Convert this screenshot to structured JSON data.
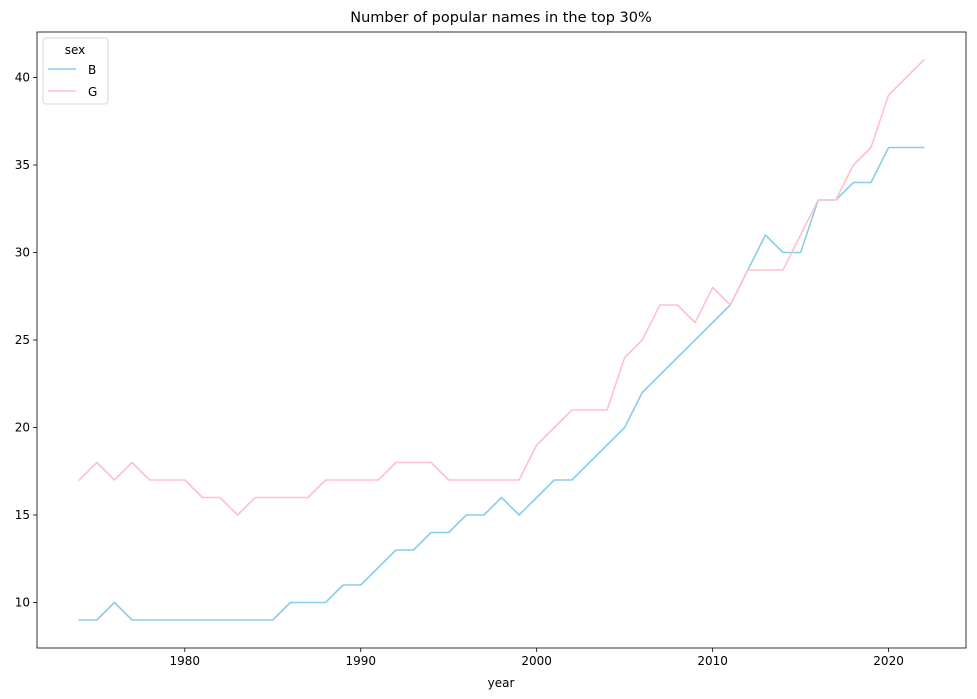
{
  "chart_data": {
    "type": "line",
    "title": "Number of popular names in the top 30%",
    "xlabel": "year",
    "ylabel": "",
    "xlim": [
      1971.6,
      2024.4
    ],
    "ylim": [
      7.4,
      42.6
    ],
    "xticks": [
      1980,
      1990,
      2000,
      2010,
      2020
    ],
    "yticks": [
      10,
      15,
      20,
      25,
      30,
      35,
      40
    ],
    "grid": false,
    "legend": {
      "title": "sex",
      "placement": "top-left"
    },
    "x": [
      1974,
      1975,
      1976,
      1977,
      1978,
      1979,
      1980,
      1981,
      1982,
      1983,
      1984,
      1985,
      1986,
      1987,
      1988,
      1989,
      1990,
      1991,
      1992,
      1993,
      1994,
      1995,
      1996,
      1997,
      1998,
      1999,
      2000,
      2001,
      2002,
      2003,
      2004,
      2005,
      2006,
      2007,
      2008,
      2009,
      2010,
      2011,
      2012,
      2013,
      2014,
      2015,
      2016,
      2017,
      2018,
      2019,
      2020,
      2021,
      2022
    ],
    "series": [
      {
        "name": "B",
        "color": "#87ceeb",
        "values": [
          9,
          9,
          10,
          9,
          9,
          9,
          9,
          9,
          9,
          9,
          9,
          9,
          10,
          10,
          10,
          11,
          11,
          12,
          13,
          13,
          14,
          14,
          15,
          15,
          16,
          15,
          16,
          17,
          17,
          18,
          19,
          20,
          22,
          23,
          24,
          25,
          26,
          27,
          29,
          31,
          30,
          30,
          33,
          33,
          34,
          34,
          36,
          36,
          36
        ]
      },
      {
        "name": "G",
        "color": "#ffc0cb",
        "values": [
          17,
          18,
          17,
          18,
          17,
          17,
          17,
          16,
          16,
          15,
          16,
          16,
          16,
          16,
          17,
          17,
          17,
          17,
          18,
          18,
          18,
          17,
          17,
          17,
          17,
          17,
          19,
          20,
          21,
          21,
          21,
          24,
          25,
          27,
          27,
          26,
          28,
          27,
          29,
          29,
          29,
          31,
          33,
          33,
          35,
          36,
          39,
          40,
          41
        ]
      }
    ]
  }
}
